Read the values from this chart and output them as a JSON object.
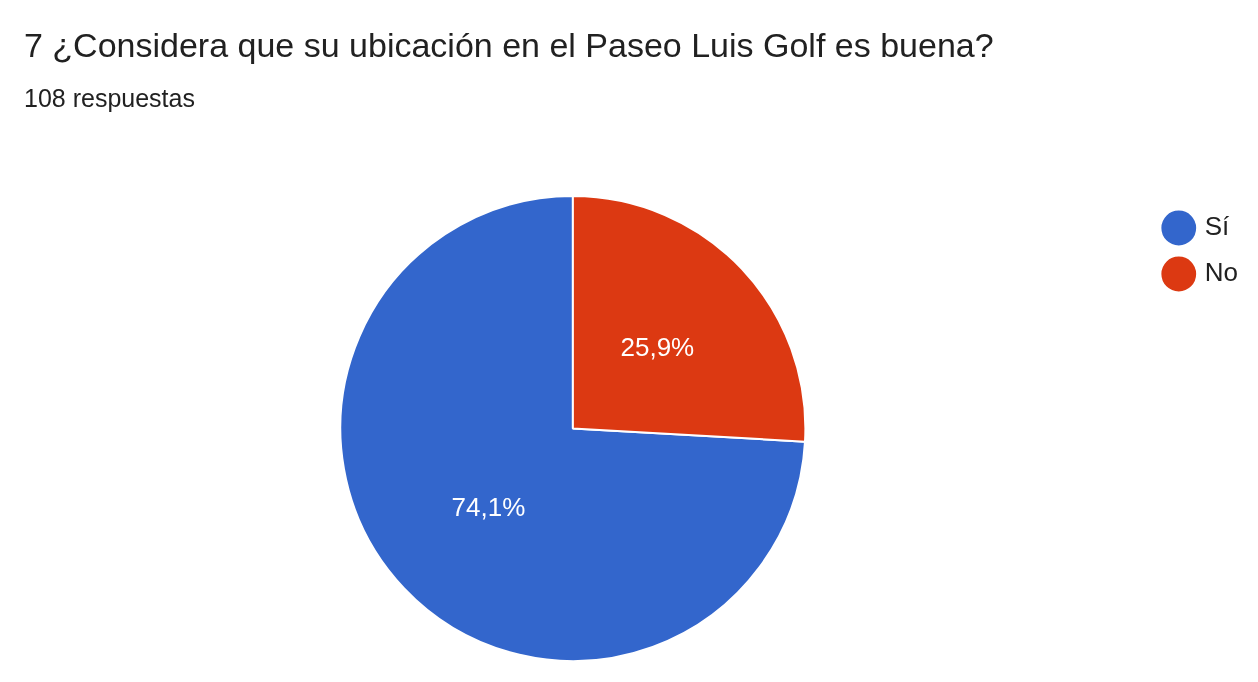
{
  "chart_data": {
    "type": "pie",
    "title": "7 ¿Considera que su ubicación en el Paseo Luis Golf es buena?",
    "subtitle": "108 respuestas",
    "categories": [
      "Sí",
      "No"
    ],
    "values": [
      74.1,
      25.9
    ],
    "colors": [
      "#3366cc",
      "#dc3912"
    ],
    "value_labels": [
      "74,1%",
      "25,9%"
    ],
    "legend": "top right"
  }
}
